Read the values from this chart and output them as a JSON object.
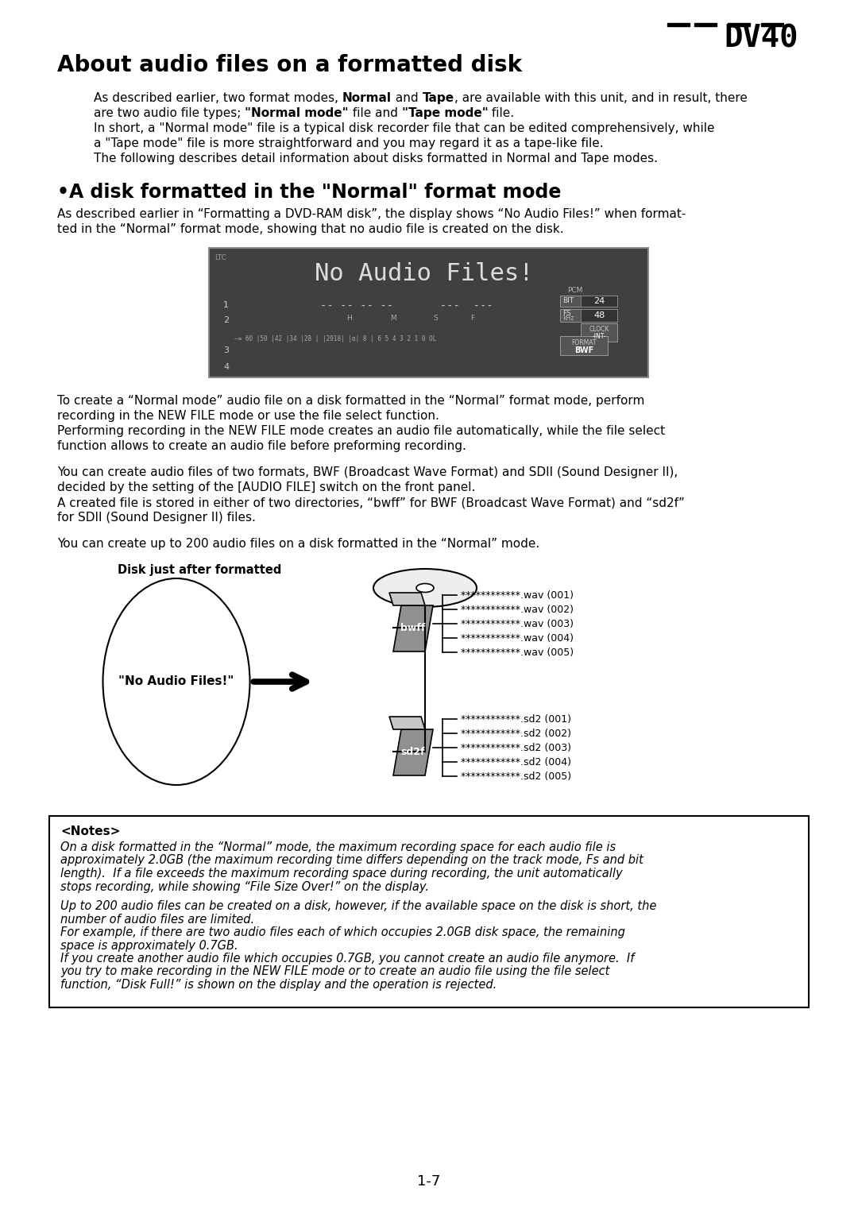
{
  "page_bg": "#ffffff",
  "logo": "DV40",
  "main_title": "About audio files on a formatted disk",
  "section_title": "•A disk formatted in the \"Normal\" format mode",
  "diagram_label": "Disk just after formatted",
  "disk_label": "\"No Audio Files!\"",
  "bwff_files": [
    "************.wav (001)",
    "************.wav (002)",
    "************.wav (003)",
    "************.wav (004)",
    "************.wav (005)"
  ],
  "sd2f_files": [
    "************.sd2 (001)",
    "************.sd2 (002)",
    "************.sd2 (003)",
    "************.sd2 (004)",
    "************.sd2 (005)"
  ],
  "notes_title": "<Notes>",
  "notes_lines": [
    "On a disk formatted in the “Normal” mode, the maximum recording space for each audio file is",
    "approximately 2.0GB (the maximum recording time differs depending on the track mode, Fs and bit",
    "length).  If a file exceeds the maximum recording space during recording, the unit automatically",
    "stops recording, while showing “File Size Over!” on the display.",
    "",
    "Up to 200 audio files can be created on a disk, however, if the available space on the disk is short, the",
    "number of audio files are limited.",
    "For example, if there are two audio files each of which occupies 2.0GB disk space, the remaining",
    "space is approximately 0.7GB.",
    "If you create another audio file which occupies 0.7GB, you cannot create an audio file anymore.  If",
    "you try to make recording in the NEW FILE mode or to create an audio file using the file select",
    "function, “Disk Full!” is shown on the display and the operation is rejected."
  ],
  "page_number": "1-7",
  "para1_line1_pre": "As described earlier, two format modes, ",
  "para1_line1_bold1": "Normal",
  "para1_line1_mid": " and ",
  "para1_line1_bold2": "Tape",
  "para1_line1_post": ", are available with this unit, and in result, there",
  "para1_line2_pre": "are two audio file types; ",
  "para1_line2_bold1": "\"Normal mode\"",
  "para1_line2_mid": " file and ",
  "para1_line2_bold2": "\"Tape mode\"",
  "para1_line2_post": " file.",
  "para2_lines": [
    "In short, a \"Normal mode\" file is a typical disk recorder file that can be edited comprehensively, while",
    "a \"Tape mode\" file is more straightforward and you may regard it as a tape-like file.",
    "The following describes detail information about disks formatted in Normal and Tape modes."
  ],
  "section_para_lines": [
    "As described earlier in “Formatting a DVD-RAM disk”, the display shows “No Audio Files!” when format-",
    "ted in the “Normal” format mode, showing that no audio file is created on the disk."
  ],
  "body_para1_lines": [
    "To create a “Normal mode” audio file on a disk formatted in the “Normal” format mode, perform",
    "recording in the NEW FILE mode or use the file select function.",
    "Performing recording in the NEW FILE mode creates an audio file automatically, while the file select",
    "function allows to create an audio file before preforming recording."
  ],
  "body_para2_lines": [
    "You can create audio files of two formats, BWF (Broadcast Wave Format) and SDII (Sound Designer II),",
    "decided by the setting of the [AUDIO FILE] switch on the front panel.",
    "A created file is stored in either of two directories, “bwff” for BWF (Broadcast Wave Format) and “sd2f”",
    "for SDII (Sound Designer II) files."
  ],
  "body_para3": "You can create up to 200 audio files on a disk formatted in the “Normal” mode."
}
